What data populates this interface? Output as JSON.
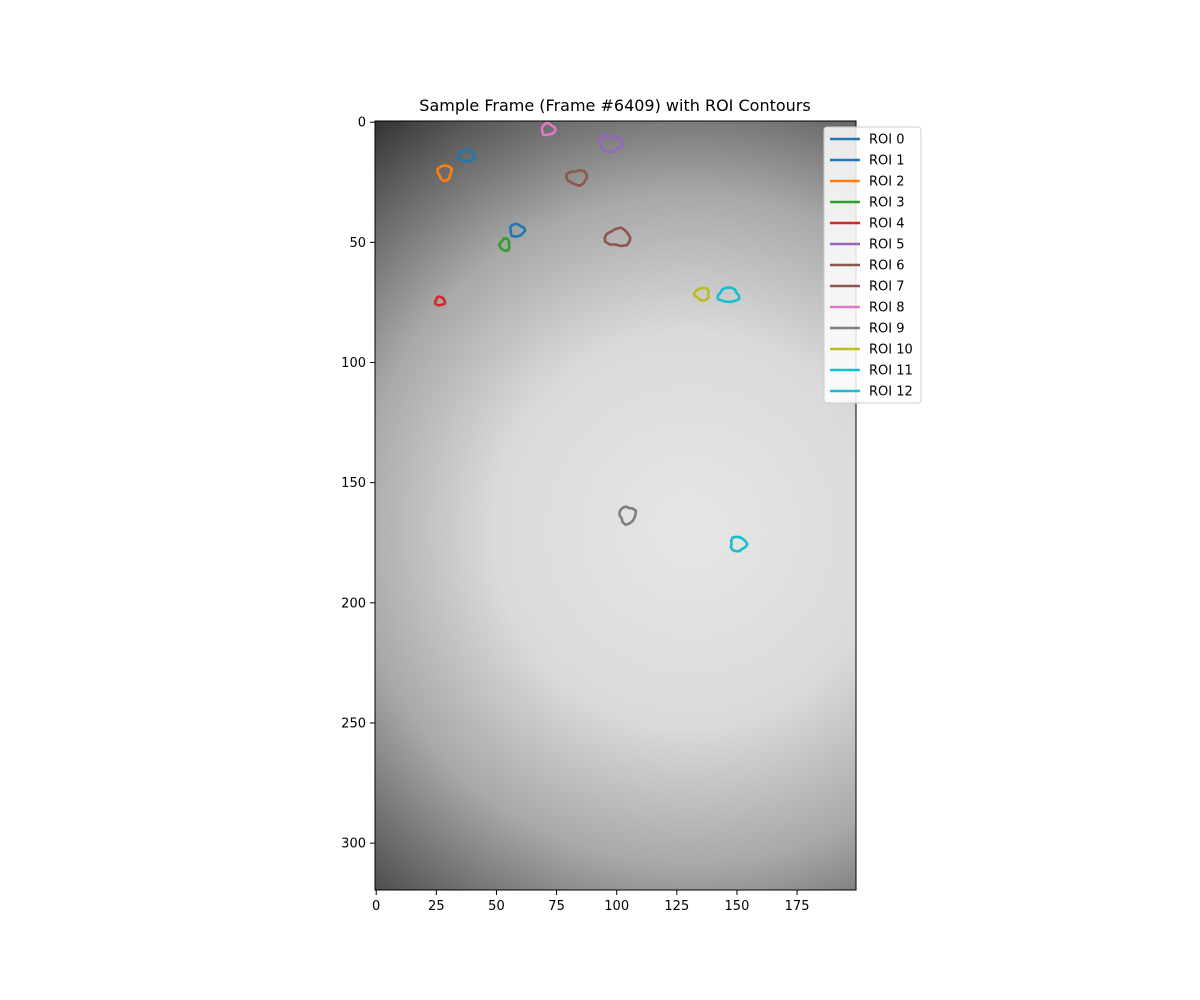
{
  "chart_data": {
    "type": "heatmap",
    "title": "Sample Frame (Frame #6409) with ROI Contours",
    "xlabel": "",
    "ylabel": "",
    "xlim": [
      -0.5,
      199.5
    ],
    "ylim": [
      319.5,
      -0.5
    ],
    "x_ticks": [
      0,
      25,
      50,
      75,
      100,
      125,
      150,
      175
    ],
    "y_ticks": [
      0,
      50,
      100,
      150,
      200,
      250,
      300
    ],
    "grid": false,
    "legend_position": "top-right",
    "image_description": "grayscale fluorescence frame, bright center fading to dark edges",
    "rois": [
      {
        "name": "ROI 0",
        "color": "#1f77b4",
        "cx": 37.5,
        "cy": 14,
        "rx": 3.3,
        "ry": 2.4
      },
      {
        "name": "ROI 1",
        "color": "#1f77b4",
        "cx": 58.5,
        "cy": 45,
        "rx": 3.0,
        "ry": 2.6
      },
      {
        "name": "ROI 2",
        "color": "#ff7f0e",
        "cx": 28.5,
        "cy": 21,
        "rx": 2.8,
        "ry": 3.2
      },
      {
        "name": "ROI 3",
        "color": "#2ca02c",
        "cx": 53.5,
        "cy": 51,
        "rx": 2.0,
        "ry": 2.6
      },
      {
        "name": "ROI 4",
        "color": "#d62728",
        "cx": 26.5,
        "cy": 74.5,
        "rx": 2.0,
        "ry": 1.8
      },
      {
        "name": "ROI 5",
        "color": "#9467bd",
        "cx": 97.5,
        "cy": 9,
        "rx": 4.8,
        "ry": 3.2
      },
      {
        "name": "ROI 6",
        "color": "#8c564b",
        "cx": 83.5,
        "cy": 23,
        "rx": 4.3,
        "ry": 3.0
      },
      {
        "name": "ROI 7",
        "color": "#8c564b",
        "cx": 100.5,
        "cy": 48,
        "rx": 5.3,
        "ry": 3.6
      },
      {
        "name": "ROI 8",
        "color": "#e377c2",
        "cx": 71.5,
        "cy": 3,
        "rx": 2.8,
        "ry": 2.4
      },
      {
        "name": "ROI 9",
        "color": "#7f7f7f",
        "cx": 104.5,
        "cy": 163.5,
        "rx": 3.3,
        "ry": 3.6
      },
      {
        "name": "ROI 10",
        "color": "#bcbd22",
        "cx": 135.5,
        "cy": 71.5,
        "rx": 3.0,
        "ry": 2.6
      },
      {
        "name": "ROI 11",
        "color": "#17becf",
        "cx": 146.5,
        "cy": 72,
        "rx": 4.3,
        "ry": 3.0
      },
      {
        "name": "ROI 12",
        "color": "#17becf",
        "cx": 150.5,
        "cy": 175.5,
        "rx": 3.3,
        "ry": 3.0
      }
    ]
  }
}
